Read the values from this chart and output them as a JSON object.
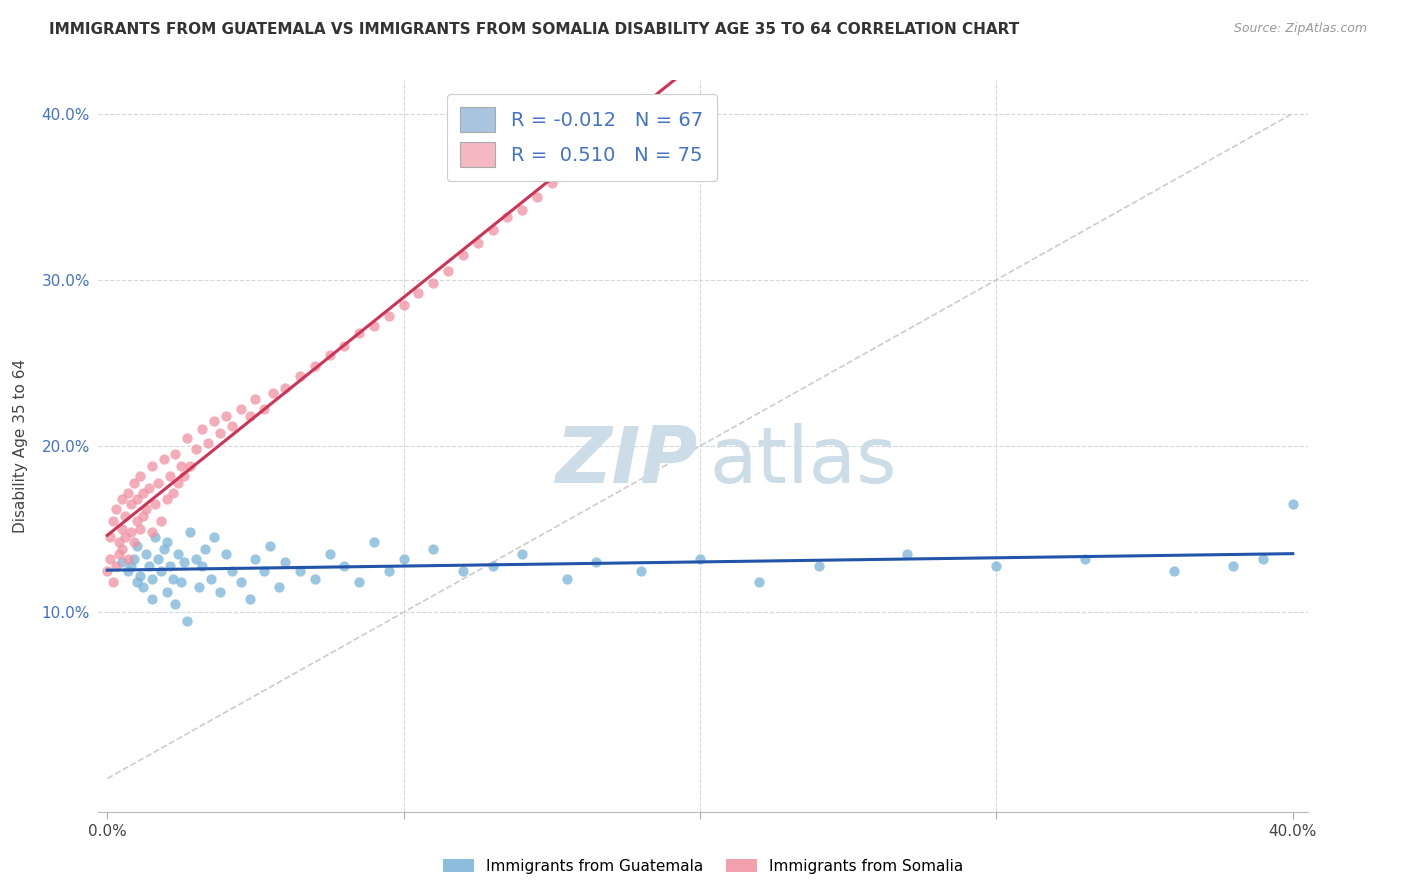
{
  "title": "IMMIGRANTS FROM GUATEMALA VS IMMIGRANTS FROM SOMALIA DISABILITY AGE 35 TO 64 CORRELATION CHART",
  "source": "Source: ZipAtlas.com",
  "ylabel": "Disability Age 35 to 64",
  "xlim": [
    0.0,
    0.4
  ],
  "ylim": [
    -0.02,
    0.42
  ],
  "legend_entries": [
    {
      "color": "#a8c4e0",
      "R": "-0.012",
      "N": "67"
    },
    {
      "color": "#f4b8c0",
      "R": "0.510",
      "N": "75"
    }
  ],
  "series_colors": [
    "#7ab3d9",
    "#f090a0"
  ],
  "trend_colors": [
    "#2255aa",
    "#cc3355"
  ],
  "diagonal_color": "#cccccc",
  "watermark_color": "#ccdde8",
  "background_color": "#ffffff",
  "dot_size": 55,
  "guatemala_x": [
    0.005,
    0.007,
    0.008,
    0.009,
    0.01,
    0.01,
    0.011,
    0.012,
    0.013,
    0.014,
    0.015,
    0.015,
    0.016,
    0.017,
    0.018,
    0.019,
    0.02,
    0.02,
    0.021,
    0.022,
    0.023,
    0.024,
    0.025,
    0.026,
    0.027,
    0.028,
    0.03,
    0.031,
    0.032,
    0.033,
    0.035,
    0.036,
    0.038,
    0.04,
    0.042,
    0.045,
    0.048,
    0.05,
    0.053,
    0.055,
    0.058,
    0.06,
    0.065,
    0.07,
    0.075,
    0.08,
    0.085,
    0.09,
    0.095,
    0.1,
    0.11,
    0.12,
    0.13,
    0.14,
    0.155,
    0.165,
    0.18,
    0.2,
    0.22,
    0.24,
    0.27,
    0.3,
    0.33,
    0.36,
    0.38,
    0.39,
    0.4
  ],
  "guatemala_y": [
    0.13,
    0.125,
    0.128,
    0.132,
    0.118,
    0.14,
    0.122,
    0.115,
    0.135,
    0.128,
    0.12,
    0.108,
    0.145,
    0.132,
    0.125,
    0.138,
    0.112,
    0.142,
    0.128,
    0.12,
    0.105,
    0.135,
    0.118,
    0.13,
    0.095,
    0.148,
    0.132,
    0.115,
    0.128,
    0.138,
    0.12,
    0.145,
    0.112,
    0.135,
    0.125,
    0.118,
    0.108,
    0.132,
    0.125,
    0.14,
    0.115,
    0.13,
    0.125,
    0.12,
    0.135,
    0.128,
    0.118,
    0.142,
    0.125,
    0.132,
    0.138,
    0.125,
    0.128,
    0.135,
    0.12,
    0.13,
    0.125,
    0.132,
    0.118,
    0.128,
    0.135,
    0.128,
    0.132,
    0.125,
    0.128,
    0.132,
    0.165
  ],
  "somalia_x": [
    0.0,
    0.001,
    0.001,
    0.002,
    0.002,
    0.003,
    0.003,
    0.004,
    0.004,
    0.005,
    0.005,
    0.005,
    0.006,
    0.006,
    0.007,
    0.007,
    0.008,
    0.008,
    0.009,
    0.009,
    0.01,
    0.01,
    0.011,
    0.011,
    0.012,
    0.012,
    0.013,
    0.014,
    0.015,
    0.015,
    0.016,
    0.017,
    0.018,
    0.019,
    0.02,
    0.021,
    0.022,
    0.023,
    0.024,
    0.025,
    0.026,
    0.027,
    0.028,
    0.03,
    0.032,
    0.034,
    0.036,
    0.038,
    0.04,
    0.042,
    0.045,
    0.048,
    0.05,
    0.053,
    0.056,
    0.06,
    0.065,
    0.07,
    0.075,
    0.08,
    0.085,
    0.09,
    0.095,
    0.1,
    0.105,
    0.11,
    0.115,
    0.12,
    0.125,
    0.13,
    0.135,
    0.14,
    0.145,
    0.15,
    0.155
  ],
  "somalia_y": [
    0.125,
    0.132,
    0.145,
    0.118,
    0.155,
    0.128,
    0.162,
    0.135,
    0.142,
    0.15,
    0.138,
    0.168,
    0.145,
    0.158,
    0.132,
    0.172,
    0.148,
    0.165,
    0.142,
    0.178,
    0.155,
    0.168,
    0.15,
    0.182,
    0.158,
    0.172,
    0.162,
    0.175,
    0.148,
    0.188,
    0.165,
    0.178,
    0.155,
    0.192,
    0.168,
    0.182,
    0.172,
    0.195,
    0.178,
    0.188,
    0.182,
    0.205,
    0.188,
    0.198,
    0.21,
    0.202,
    0.215,
    0.208,
    0.218,
    0.212,
    0.222,
    0.218,
    0.228,
    0.222,
    0.232,
    0.235,
    0.242,
    0.248,
    0.255,
    0.26,
    0.268,
    0.272,
    0.278,
    0.285,
    0.292,
    0.298,
    0.305,
    0.315,
    0.322,
    0.33,
    0.338,
    0.342,
    0.35,
    0.358,
    0.37
  ]
}
